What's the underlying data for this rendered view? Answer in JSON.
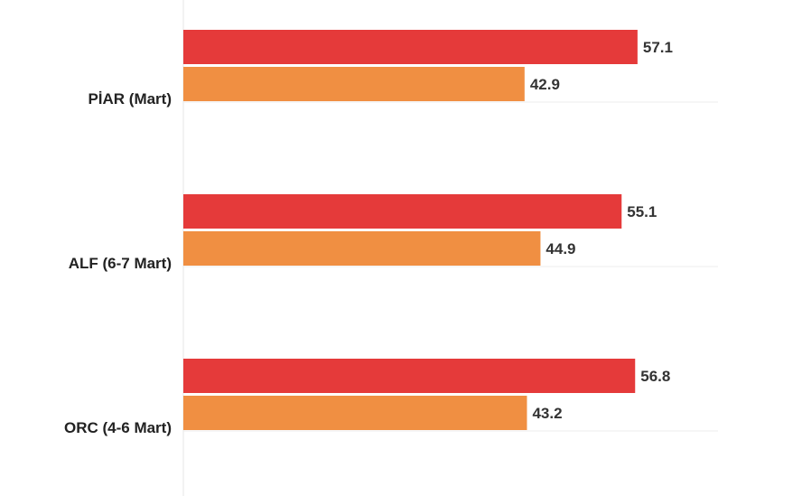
{
  "chart_data": {
    "type": "bar",
    "orientation": "horizontal",
    "categories": [
      "PİAR (Mart)",
      "ALF (6-7 Mart)",
      "ORC (4-6 Mart)"
    ],
    "series": [
      {
        "values": [
          57.1,
          55.1,
          56.8
        ],
        "color": "#e53a3a"
      },
      {
        "values": [
          42.9,
          44.9,
          43.2
        ],
        "color": "#f08f42"
      }
    ],
    "title": "",
    "xlabel": "",
    "ylabel": "",
    "xlim": [
      0,
      60
    ],
    "grid": false,
    "legend": "none"
  }
}
